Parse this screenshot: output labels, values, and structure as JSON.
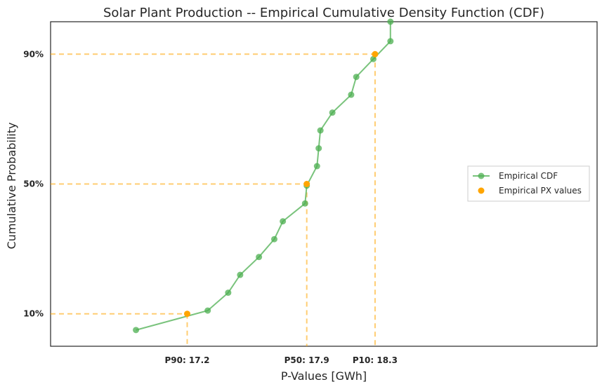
{
  "chart_data": {
    "type": "line",
    "title": "Solar Plant Production -- Empirical Cumulative Density Function (CDF)",
    "xlabel": "P-Values [GWh]",
    "ylabel": "Cumulative Probability",
    "xlim": [
      16.4,
      19.6
    ],
    "ylim": [
      0.0,
      1.0
    ],
    "grid": false,
    "legend_position": "center-right",
    "x_tick_labels": [
      {
        "x": 17.2,
        "label": "P90: 17.2"
      },
      {
        "x": 17.9,
        "label": "P50: 17.9"
      },
      {
        "x": 18.3,
        "label": "P10: 18.3"
      }
    ],
    "y_tick_labels": [
      {
        "y": 0.1,
        "label": "10%"
      },
      {
        "y": 0.5,
        "label": "50%"
      },
      {
        "y": 0.9,
        "label": "90%"
      }
    ],
    "series": [
      {
        "name": "Empirical CDF",
        "color": "#4caf50",
        "x": [
          16.9,
          17.32,
          17.44,
          17.51,
          17.62,
          17.71,
          17.76,
          17.89,
          17.9,
          17.96,
          17.97,
          17.98,
          18.05,
          18.16,
          18.19,
          18.29,
          18.39,
          18.39
        ],
        "y": [
          0.05,
          0.11,
          0.165,
          0.22,
          0.275,
          0.33,
          0.385,
          0.44,
          0.495,
          0.555,
          0.61,
          0.665,
          0.72,
          0.775,
          0.83,
          0.885,
          0.94,
          1.0
        ]
      },
      {
        "name": "Empirical PX values",
        "color": "#ffa500",
        "x": [
          17.2,
          17.9,
          18.3
        ],
        "y": [
          0.1,
          0.5,
          0.9
        ]
      }
    ]
  }
}
